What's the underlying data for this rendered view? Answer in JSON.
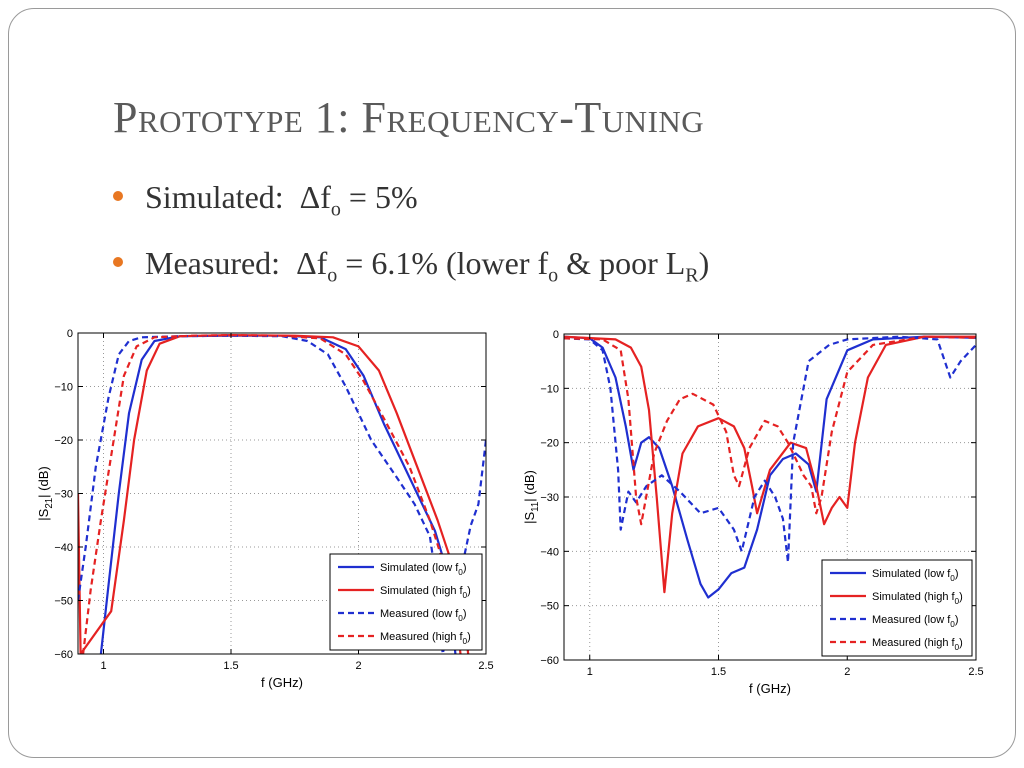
{
  "slide": {
    "title": "Prototype 1: Frequency-Tuning",
    "bullets": [
      {
        "label": "Simulated:",
        "delta": "Δf",
        "sub": "o",
        "rest": " = 5%"
      },
      {
        "label": "Measured:",
        "delta": "Δf",
        "sub": "o",
        "rest": " = 6.1% (lower f",
        "sub2": "o",
        "rest2": " & poor L",
        "sub3": "R",
        "rest3": ")"
      }
    ],
    "bullet_color": "#e87722"
  },
  "chart_data": [
    {
      "type": "line",
      "ylabel": "|S21| (dB)",
      "xlabel": "f (GHz)",
      "xlim": [
        0.9,
        2.5
      ],
      "ylim": [
        -60,
        0
      ],
      "xticks": [
        1,
        1.5,
        2,
        2.5
      ],
      "xtick_labels": [
        "1",
        "1.5",
        "2",
        "2.5"
      ],
      "yticks": [
        0,
        -10,
        -20,
        -30,
        -40,
        -50,
        -60
      ],
      "ytick_labels": [
        "0",
        "−10",
        "−20",
        "−30",
        "−40",
        "−50",
        "−60"
      ],
      "grid": true,
      "legend": "bottom-right",
      "series": [
        {
          "name": "Simulated (low f0)",
          "color": "#1f2fd0",
          "dash": false,
          "points": [
            [
              0.99,
              -60
            ],
            [
              1.02,
              -47
            ],
            [
              1.06,
              -30
            ],
            [
              1.1,
              -15
            ],
            [
              1.15,
              -5
            ],
            [
              1.2,
              -1.5
            ],
            [
              1.3,
              -0.6
            ],
            [
              1.5,
              -0.5
            ],
            [
              1.7,
              -0.5
            ],
            [
              1.85,
              -0.8
            ],
            [
              1.95,
              -3
            ],
            [
              2.02,
              -8
            ],
            [
              2.1,
              -17
            ],
            [
              2.2,
              -27
            ],
            [
              2.3,
              -37
            ],
            [
              2.35,
              -45
            ],
            [
              2.38,
              -60
            ]
          ]
        },
        {
          "name": "Simulated (high f0)",
          "color": "#e52222",
          "dash": false,
          "points": [
            [
              0.9,
              -30
            ],
            [
              0.91,
              -60
            ],
            [
              1.03,
              -52
            ],
            [
              1.08,
              -35
            ],
            [
              1.12,
              -20
            ],
            [
              1.17,
              -7
            ],
            [
              1.22,
              -2
            ],
            [
              1.3,
              -0.6
            ],
            [
              1.5,
              -0.4
            ],
            [
              1.75,
              -0.5
            ],
            [
              1.9,
              -0.8
            ],
            [
              2.0,
              -2.5
            ],
            [
              2.08,
              -7
            ],
            [
              2.15,
              -15
            ],
            [
              2.23,
              -25
            ],
            [
              2.31,
              -35
            ],
            [
              2.38,
              -45
            ],
            [
              2.41,
              -52
            ],
            [
              2.43,
              -60
            ]
          ]
        },
        {
          "name": "Measured (low f0)",
          "color": "#1f2fd0",
          "dash": true,
          "points": [
            [
              0.9,
              -50
            ],
            [
              0.93,
              -40
            ],
            [
              0.97,
              -25
            ],
            [
              1.02,
              -12
            ],
            [
              1.06,
              -4
            ],
            [
              1.1,
              -1.5
            ],
            [
              1.15,
              -0.8
            ],
            [
              1.3,
              -0.6
            ],
            [
              1.5,
              -0.5
            ],
            [
              1.7,
              -0.6
            ],
            [
              1.8,
              -1.5
            ],
            [
              1.88,
              -4
            ],
            [
              1.95,
              -10
            ],
            [
              2.05,
              -20
            ],
            [
              2.15,
              -27
            ],
            [
              2.22,
              -32
            ],
            [
              2.28,
              -38
            ],
            [
              2.31,
              -48
            ],
            [
              2.33,
              -60
            ],
            [
              2.4,
              -45
            ],
            [
              2.44,
              -36
            ],
            [
              2.47,
              -32
            ],
            [
              2.5,
              -20
            ]
          ]
        },
        {
          "name": "Measured (high f0)",
          "color": "#e52222",
          "dash": true,
          "points": [
            [
              0.92,
              -60
            ],
            [
              0.95,
              -48
            ],
            [
              0.99,
              -35
            ],
            [
              1.04,
              -20
            ],
            [
              1.08,
              -8
            ],
            [
              1.13,
              -2.5
            ],
            [
              1.2,
              -0.8
            ],
            [
              1.35,
              -0.5
            ],
            [
              1.5,
              -0.4
            ],
            [
              1.7,
              -0.5
            ],
            [
              1.85,
              -1
            ],
            [
              1.95,
              -4
            ],
            [
              2.02,
              -9
            ],
            [
              2.1,
              -16
            ],
            [
              2.2,
              -25
            ],
            [
              2.28,
              -35
            ],
            [
              2.34,
              -44
            ],
            [
              2.38,
              -52
            ],
            [
              2.4,
              -60
            ]
          ]
        }
      ]
    },
    {
      "type": "line",
      "ylabel": "|S11| (dB)",
      "xlabel": "f (GHz)",
      "xlim": [
        0.9,
        2.5
      ],
      "ylim": [
        -60,
        0
      ],
      "xticks": [
        1,
        1.5,
        2,
        2.5
      ],
      "xtick_labels": [
        "1",
        "1.5",
        "2",
        "2.5"
      ],
      "yticks": [
        0,
        -10,
        -20,
        -30,
        -40,
        -50,
        -60
      ],
      "ytick_labels": [
        "0",
        "−10",
        "−20",
        "−30",
        "−40",
        "−50",
        "−60"
      ],
      "grid": true,
      "legend": "bottom-right",
      "series": [
        {
          "name": "Simulated (low f0)",
          "color": "#1f2fd0",
          "dash": false,
          "points": [
            [
              0.9,
              -0.5
            ],
            [
              1.0,
              -0.8
            ],
            [
              1.05,
              -2.5
            ],
            [
              1.1,
              -8
            ],
            [
              1.14,
              -17
            ],
            [
              1.17,
              -25
            ],
            [
              1.2,
              -20
            ],
            [
              1.23,
              -19
            ],
            [
              1.27,
              -21
            ],
            [
              1.32,
              -28
            ],
            [
              1.38,
              -38
            ],
            [
              1.43,
              -46
            ],
            [
              1.46,
              -48.5
            ],
            [
              1.5,
              -47
            ],
            [
              1.55,
              -44
            ],
            [
              1.6,
              -43
            ],
            [
              1.65,
              -36
            ],
            [
              1.7,
              -26
            ],
            [
              1.75,
              -23
            ],
            [
              1.8,
              -22
            ],
            [
              1.85,
              -24
            ],
            [
              1.88,
              -29
            ],
            [
              1.92,
              -12
            ],
            [
              2.0,
              -3
            ],
            [
              2.1,
              -1
            ],
            [
              2.3,
              -0.5
            ],
            [
              2.5,
              -0.7
            ]
          ]
        },
        {
          "name": "Simulated (high f0)",
          "color": "#e52222",
          "dash": false,
          "points": [
            [
              0.9,
              -0.5
            ],
            [
              1.1,
              -1
            ],
            [
              1.16,
              -2.5
            ],
            [
              1.2,
              -6
            ],
            [
              1.23,
              -14
            ],
            [
              1.26,
              -30
            ],
            [
              1.29,
              -47.5
            ],
            [
              1.32,
              -33
            ],
            [
              1.36,
              -22
            ],
            [
              1.42,
              -17
            ],
            [
              1.5,
              -15.5
            ],
            [
              1.56,
              -17
            ],
            [
              1.6,
              -21
            ],
            [
              1.63,
              -28
            ],
            [
              1.65,
              -33
            ],
            [
              1.7,
              -25
            ],
            [
              1.78,
              -20
            ],
            [
              1.84,
              -21
            ],
            [
              1.88,
              -28
            ],
            [
              1.91,
              -35
            ],
            [
              1.94,
              -32
            ],
            [
              1.97,
              -30
            ],
            [
              2.0,
              -32
            ],
            [
              2.03,
              -20
            ],
            [
              2.08,
              -8
            ],
            [
              2.15,
              -2
            ],
            [
              2.3,
              -0.5
            ],
            [
              2.5,
              -0.5
            ]
          ]
        },
        {
          "name": "Measured (low f0)",
          "color": "#1f2fd0",
          "dash": true,
          "points": [
            [
              0.9,
              -0.8
            ],
            [
              1.0,
              -1
            ],
            [
              1.05,
              -3
            ],
            [
              1.08,
              -10
            ],
            [
              1.11,
              -25
            ],
            [
              1.12,
              -36
            ],
            [
              1.15,
              -29
            ],
            [
              1.18,
              -31
            ],
            [
              1.22,
              -28
            ],
            [
              1.28,
              -26
            ],
            [
              1.35,
              -29
            ],
            [
              1.43,
              -33
            ],
            [
              1.5,
              -32
            ],
            [
              1.56,
              -36
            ],
            [
              1.59,
              -40
            ],
            [
              1.64,
              -30
            ],
            [
              1.68,
              -27
            ],
            [
              1.72,
              -30
            ],
            [
              1.75,
              -34
            ],
            [
              1.77,
              -42
            ],
            [
              1.79,
              -20
            ],
            [
              1.85,
              -5
            ],
            [
              1.93,
              -2
            ],
            [
              2.0,
              -1
            ],
            [
              2.2,
              -0.5
            ],
            [
              2.35,
              -1
            ],
            [
              2.4,
              -8
            ],
            [
              2.44,
              -5
            ],
            [
              2.5,
              -2
            ]
          ]
        },
        {
          "name": "Measured (high f0)",
          "color": "#e52222",
          "dash": true,
          "points": [
            [
              0.9,
              -0.8
            ],
            [
              1.05,
              -1
            ],
            [
              1.12,
              -3
            ],
            [
              1.15,
              -12
            ],
            [
              1.18,
              -30
            ],
            [
              1.2,
              -35
            ],
            [
              1.25,
              -22
            ],
            [
              1.3,
              -16
            ],
            [
              1.35,
              -12
            ],
            [
              1.4,
              -11
            ],
            [
              1.48,
              -13
            ],
            [
              1.53,
              -18
            ],
            [
              1.56,
              -26
            ],
            [
              1.58,
              -28
            ],
            [
              1.62,
              -21
            ],
            [
              1.68,
              -16
            ],
            [
              1.73,
              -17
            ],
            [
              1.77,
              -20
            ],
            [
              1.8,
              -23
            ],
            [
              1.83,
              -26
            ],
            [
              1.86,
              -28
            ],
            [
              1.88,
              -33
            ],
            [
              1.9,
              -30
            ],
            [
              1.94,
              -18
            ],
            [
              2.0,
              -7
            ],
            [
              2.1,
              -2
            ],
            [
              2.3,
              -0.5
            ],
            [
              2.5,
              -0.7
            ]
          ]
        }
      ]
    }
  ]
}
